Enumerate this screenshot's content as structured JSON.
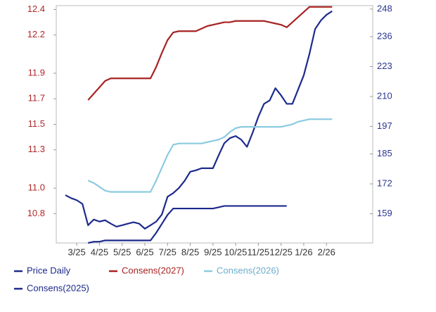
{
  "chart_data": {
    "type": "line",
    "categories": [
      null,
      null,
      "3/25",
      null,
      null,
      null,
      "4/25",
      null,
      null,
      null,
      "5/25",
      null,
      null,
      null,
      "6/25",
      null,
      null,
      null,
      "7/25",
      null,
      null,
      null,
      "8/25",
      null,
      null,
      null,
      "9/25",
      null,
      null,
      null,
      "10/25",
      null,
      null,
      null,
      "11/25",
      null,
      null,
      null,
      "12/25",
      null,
      null,
      null,
      "1/26",
      null,
      null,
      null,
      "2/26",
      null
    ],
    "ylim": [
      10.57,
      12.43
    ],
    "yticks": [
      10.8,
      {
        "value": 11,
        "label": "11.0"
      },
      11.3,
      11.5,
      11.7,
      11.9,
      12.2,
      12.4
    ],
    "y2lim": [
      146.3,
      249.5
    ],
    "y2ticks": [
      159,
      172,
      185,
      197,
      210,
      223,
      236,
      248
    ],
    "series": [
      {
        "name": "Price Daily",
        "color": "#1c2a8c",
        "axis": "y2",
        "values": [
          167.1,
          165.8,
          164.9,
          163.3,
          154.0,
          156.5,
          155.6,
          156.2,
          154.7,
          153.4,
          154.0,
          154.7,
          155.3,
          154.7,
          152.5,
          154.0,
          155.6,
          158.7,
          166.4,
          168.0,
          170.2,
          173.3,
          177.3,
          177.9,
          178.8,
          178.8,
          178.8,
          184.4,
          189.7,
          191.9,
          192.8,
          191.2,
          188.1,
          194.3,
          201.2,
          206.8,
          208.3,
          213.6,
          210.5,
          206.8,
          206.8,
          213.0,
          219.2,
          228.5,
          239.3,
          243.0,
          245.5,
          247.1
        ]
      },
      {
        "name": "Consens(2027)",
        "color": "#a82222",
        "values": [
          null,
          null,
          null,
          null,
          11.69,
          11.74,
          11.79,
          11.84,
          11.86,
          11.86,
          11.86,
          11.86,
          11.86,
          11.86,
          11.86,
          11.86,
          11.95,
          12.06,
          12.16,
          12.22,
          12.23,
          12.23,
          12.23,
          12.23,
          12.25,
          12.27,
          12.28,
          12.29,
          12.3,
          12.3,
          12.31,
          12.31,
          12.31,
          12.31,
          12.31,
          12.31,
          12.3,
          12.29,
          12.28,
          12.26,
          12.3,
          12.34,
          12.38,
          12.42,
          12.42,
          12.42,
          12.42,
          12.42
        ]
      },
      {
        "name": "Consens(2026)",
        "color": "#8ccbe0",
        "values": [
          null,
          null,
          null,
          null,
          11.06,
          11.04,
          11.01,
          10.98,
          10.97,
          10.97,
          10.97,
          10.97,
          10.97,
          10.97,
          10.97,
          10.97,
          11.06,
          11.16,
          11.26,
          11.34,
          11.35,
          11.35,
          11.35,
          11.35,
          11.35,
          11.36,
          11.37,
          11.38,
          11.4,
          11.44,
          11.47,
          11.48,
          11.48,
          11.48,
          11.48,
          11.48,
          11.48,
          11.48,
          11.48,
          11.49,
          11.5,
          11.52,
          11.53,
          11.54,
          11.54,
          11.54,
          11.54,
          11.54
        ]
      },
      {
        "name": "Consens(2025)",
        "color": "#1c2a8c",
        "values": [
          null,
          null,
          null,
          null,
          10.57,
          10.58,
          10.58,
          10.59,
          10.59,
          10.59,
          10.59,
          10.59,
          10.59,
          10.59,
          10.59,
          10.59,
          10.65,
          10.72,
          10.79,
          10.84,
          10.84,
          10.84,
          10.84,
          10.84,
          10.84,
          10.84,
          10.84,
          10.85,
          10.86,
          10.86,
          10.86,
          10.86,
          10.86,
          10.86,
          10.86,
          10.86,
          10.86,
          10.86,
          10.86,
          10.86,
          null,
          null,
          null,
          null,
          null,
          null,
          null,
          null
        ]
      }
    ],
    "left_axis_color": "#b02828",
    "right_axis_color": "#2a3590"
  }
}
